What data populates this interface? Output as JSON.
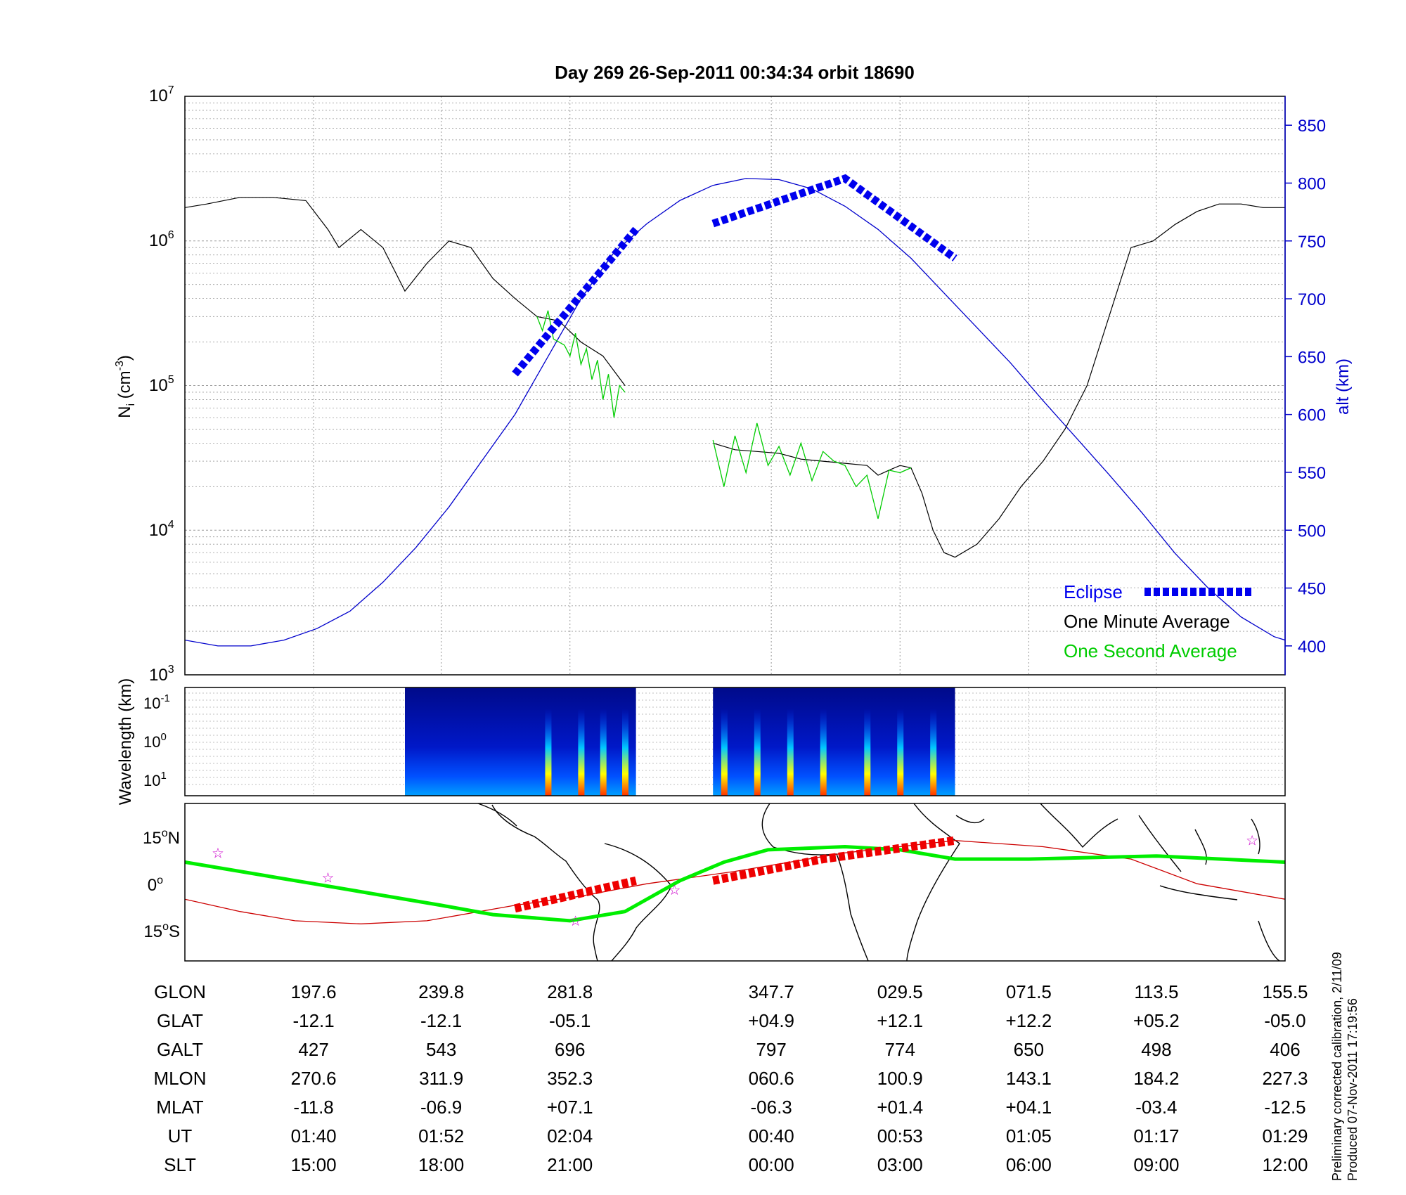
{
  "chart_data": [
    {
      "type": "line",
      "title": "Day 269  26-Sep-2011 00:34:34   orbit 18690",
      "ylabel_left": "N",
      "ylabel_left_sub": "i",
      "ylabel_left_unit": "(cm",
      "ylabel_left_unit_sup": "-3",
      "ylabel_left_unit_close": ")",
      "ylabel_right": "alt (km)",
      "yscale_left": "log",
      "ylim_left": [
        1000,
        10000000
      ],
      "ylim_right": [
        375,
        875
      ],
      "left_ticks": [
        {
          "base": "10",
          "exp": "3"
        },
        {
          "base": "10",
          "exp": "4"
        },
        {
          "base": "10",
          "exp": "5"
        },
        {
          "base": "10",
          "exp": "6"
        },
        {
          "base": "10",
          "exp": "7"
        }
      ],
      "right_ticks": [
        "400",
        "450",
        "500",
        "550",
        "600",
        "650",
        "700",
        "750",
        "800",
        "850"
      ],
      "legend": {
        "position": "bottom-right",
        "eclipse": "Eclipse",
        "minute": "One Minute Average",
        "second": "One Second Average"
      },
      "colors": {
        "altitude": "#0000cc",
        "minute": "#000000",
        "second": "#00cc00",
        "eclipse": "#0000ee",
        "grid": "#808080"
      },
      "x_domain": [
        0,
        1
      ],
      "vertical_gridlines_x": [
        0.117,
        0.233,
        0.35,
        0.533,
        0.65,
        0.767,
        0.883
      ],
      "altitude_km": {
        "x": [
          0,
          0.03,
          0.06,
          0.09,
          0.12,
          0.15,
          0.18,
          0.21,
          0.24,
          0.27,
          0.3,
          0.33,
          0.36,
          0.39,
          0.42,
          0.45,
          0.48,
          0.51,
          0.54,
          0.57,
          0.6,
          0.63,
          0.66,
          0.69,
          0.72,
          0.75,
          0.78,
          0.81,
          0.84,
          0.87,
          0.9,
          0.93,
          0.96,
          0.99,
          1.0
        ],
        "y": [
          405,
          400,
          400,
          405,
          415,
          430,
          455,
          485,
          520,
          560,
          600,
          650,
          700,
          740,
          765,
          785,
          798,
          804,
          803,
          795,
          780,
          760,
          735,
          705,
          675,
          645,
          612,
          580,
          548,
          515,
          480,
          450,
          425,
          408,
          405
        ]
      },
      "one_minute_average": {
        "x": [
          0,
          0.02,
          0.05,
          0.08,
          0.11,
          0.13,
          0.14,
          0.16,
          0.18,
          0.2,
          0.22,
          0.24,
          0.26,
          0.28,
          0.3,
          0.32,
          0.34,
          0.36,
          0.38,
          0.4
        ],
        "y": [
          1700000,
          1800000,
          2000000,
          2000000,
          1900000,
          1200000,
          900000,
          1200000,
          900000,
          450000,
          700000,
          1000000,
          900000,
          550000,
          400000,
          300000,
          280000,
          200000,
          160000,
          100000
        ],
        "x2": [
          0.48,
          0.5,
          0.52,
          0.54,
          0.56,
          0.58,
          0.6,
          0.62,
          0.63,
          0.64,
          0.65,
          0.66,
          0.67,
          0.68,
          0.69,
          0.7,
          0.72,
          0.74,
          0.76,
          0.78,
          0.8,
          0.82,
          0.84,
          0.86,
          0.88,
          0.9,
          0.92,
          0.94,
          0.96,
          0.98,
          1.0
        ],
        "y2": [
          40000,
          36000,
          35000,
          34000,
          31000,
          30000,
          29000,
          28000,
          24000,
          26000,
          28000,
          27000,
          18000,
          10000,
          7000,
          6500,
          8000,
          12000,
          20000,
          30000,
          50000,
          100000,
          300000,
          900000,
          1000000,
          1300000,
          1600000,
          1800000,
          1800000,
          1700000,
          1700000
        ]
      },
      "one_second_average": {
        "x": [
          0.32,
          0.325,
          0.33,
          0.335,
          0.34,
          0.345,
          0.35,
          0.355,
          0.36,
          0.365,
          0.37,
          0.375,
          0.38,
          0.385,
          0.39,
          0.395,
          0.4
        ],
        "y": [
          300000,
          240000,
          330000,
          210000,
          200000,
          190000,
          160000,
          230000,
          140000,
          180000,
          110000,
          150000,
          80000,
          120000,
          60000,
          100000,
          90000
        ],
        "x2": [
          0.48,
          0.49,
          0.5,
          0.51,
          0.52,
          0.53,
          0.54,
          0.55,
          0.56,
          0.57,
          0.58,
          0.59,
          0.6,
          0.61,
          0.62,
          0.63,
          0.64,
          0.65,
          0.66
        ],
        "y2": [
          42000,
          20000,
          45000,
          25000,
          55000,
          28000,
          38000,
          24000,
          40000,
          22000,
          35000,
          30000,
          28000,
          20000,
          24000,
          12000,
          26000,
          25000,
          27000
        ]
      },
      "eclipse_altitude_segments": [
        {
          "x": [
            0.3,
            0.41
          ],
          "y": [
            635,
            760
          ]
        },
        {
          "x": [
            0.48,
            0.6,
            0.7
          ],
          "y": [
            765,
            804,
            735
          ]
        }
      ]
    },
    {
      "type": "heatmap",
      "ylabel": "Wavelength (km)",
      "yticks": [
        {
          "base": "10",
          "exp": "-1"
        },
        {
          "base": "10",
          "exp": "0"
        },
        {
          "base": "10",
          "exp": "1"
        }
      ],
      "data_segments_x": [
        [
          0.2,
          0.41
        ],
        [
          0.48,
          0.7
        ]
      ],
      "bright_bands_x": [
        0.33,
        0.36,
        0.38,
        0.4,
        0.49,
        0.52,
        0.55,
        0.58,
        0.62,
        0.65,
        0.68
      ]
    },
    {
      "type": "map",
      "yticks": [
        {
          "value": "15",
          "hemi": "N"
        },
        {
          "value": "0",
          "hemi": ""
        },
        {
          "value": "15",
          "hemi": "S"
        }
      ],
      "ylim": [
        -25,
        26
      ],
      "orbit_track": {
        "x": [
          0,
          0.117,
          0.233,
          0.28,
          0.35,
          0.4,
          0.45,
          0.49,
          0.53,
          0.6,
          0.65,
          0.7,
          0.767,
          0.883,
          1.0
        ],
        "y": [
          7,
          0,
          -7,
          -10,
          -12,
          -9,
          1,
          7,
          11,
          12,
          11,
          8,
          8,
          9,
          7
        ]
      },
      "magnetic_equator": {
        "x": [
          0,
          0.05,
          0.1,
          0.16,
          0.22,
          0.3,
          0.36,
          0.42,
          0.5,
          0.6,
          0.7,
          0.78,
          0.86,
          0.92,
          1.0
        ],
        "y": [
          -5,
          -9,
          -12,
          -13,
          -12,
          -7,
          -4,
          0,
          4,
          10,
          14,
          12,
          8,
          0,
          -5
        ]
      },
      "eclipse_segments": [
        {
          "x": [
            0.3,
            0.41
          ],
          "y": [
            -8,
            1
          ]
        },
        {
          "x": [
            0.48,
            0.58,
            0.7
          ],
          "y": [
            1,
            8,
            14
          ]
        }
      ],
      "stars": [
        {
          "x": 0.03,
          "y": 10
        },
        {
          "x": 0.13,
          "y": 2
        },
        {
          "x": 0.355,
          "y": -12
        },
        {
          "x": 0.445,
          "y": -2
        },
        {
          "x": 0.97,
          "y": 14
        }
      ]
    }
  ],
  "ephemeris": {
    "rows": [
      "GLON",
      "GLAT",
      "GALT",
      "MLON",
      "MLAT",
      "UT",
      "SLT"
    ],
    "columns": [
      {
        "values": [
          "197.6",
          "-12.1",
          "427",
          "270.6",
          "-11.8",
          "01:40",
          "15:00"
        ]
      },
      {
        "values": [
          "239.8",
          "-12.1",
          "543",
          "311.9",
          "-06.9",
          "01:52",
          "18:00"
        ]
      },
      {
        "values": [
          "281.8",
          "-05.1",
          "696",
          "352.3",
          "+07.1",
          "02:04",
          "21:00"
        ]
      },
      {
        "values": [
          "347.7",
          "+04.9",
          "797",
          "060.6",
          "-06.3",
          "00:40",
          "00:00"
        ]
      },
      {
        "values": [
          "029.5",
          "+12.1",
          "774",
          "100.9",
          "+01.4",
          "00:53",
          "03:00"
        ]
      },
      {
        "values": [
          "071.5",
          "+12.2",
          "650",
          "143.1",
          "+04.1",
          "01:05",
          "06:00"
        ]
      },
      {
        "values": [
          "113.5",
          "+05.2",
          "498",
          "184.2",
          "-03.4",
          "01:17",
          "09:00"
        ]
      },
      {
        "values": [
          "155.5",
          "-05.0",
          "406",
          "227.3",
          "-12.5",
          "01:29",
          "12:00"
        ]
      }
    ]
  },
  "footnote": {
    "line1": "Preliminary corrected calibration, 2/11/09",
    "line2": "Produced 07-Nov-2011 17:19:56"
  }
}
